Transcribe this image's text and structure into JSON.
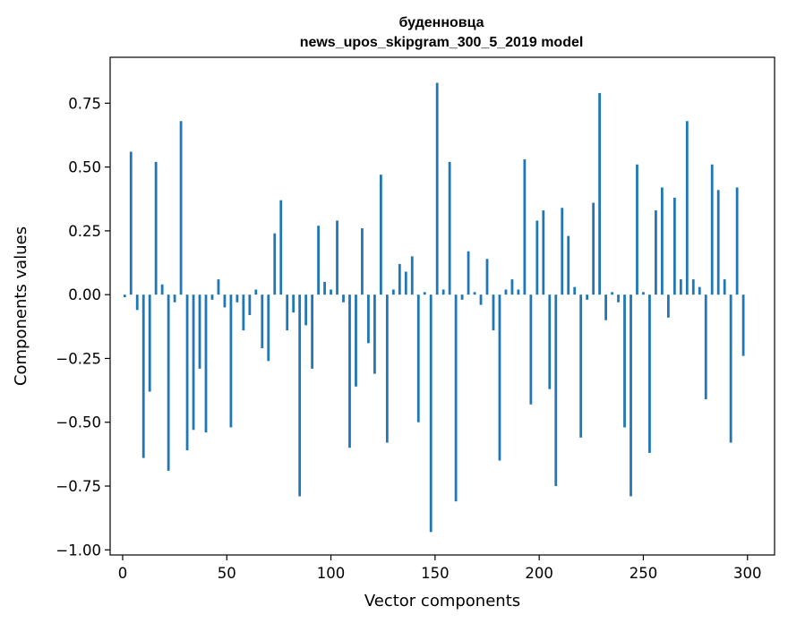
{
  "chart_data": {
    "type": "bar",
    "title": "буденновца",
    "subtitle": "news_upos_skipgram_300_5_2019 model",
    "xlabel": "Vector components",
    "ylabel": "Components values",
    "xlim": [
      -6,
      313
    ],
    "ylim": [
      -1.02,
      0.93
    ],
    "xticks": [
      0,
      50,
      100,
      150,
      200,
      250,
      300
    ],
    "xtick_labels": [
      "0",
      "50",
      "100",
      "150",
      "200",
      "250",
      "300"
    ],
    "yticks": [
      -1.0,
      -0.75,
      -0.5,
      -0.25,
      0.0,
      0.25,
      0.5,
      0.75
    ],
    "ytick_labels": [
      "−1.00",
      "−0.75",
      "−0.50",
      "−0.25",
      "0.00",
      "0.25",
      "0.50",
      "0.75"
    ],
    "grid": false,
    "bar_color": "#1f77b4",
    "values": [
      -0.01,
      0.56,
      -0.06,
      -0.64,
      -0.38,
      0.52,
      0.04,
      -0.69,
      -0.03,
      0.68,
      -0.61,
      -0.53,
      -0.29,
      -0.54,
      -0.02,
      0.06,
      -0.05,
      -0.52,
      -0.03,
      -0.14,
      -0.08,
      0.02,
      -0.21,
      -0.26,
      0.24,
      0.37,
      -0.14,
      -0.07,
      -0.79,
      -0.12,
      -0.29,
      0.27,
      0.05,
      0.02,
      0.29,
      -0.03,
      -0.6,
      -0.36,
      0.26,
      -0.19,
      -0.31,
      0.47,
      -0.58,
      0.02,
      0.12,
      0.09,
      0.15,
      -0.5,
      0.01,
      -0.93,
      0.83,
      0.02,
      0.52,
      -0.81,
      -0.02,
      0.17,
      0.01,
      -0.04,
      0.14,
      -0.14,
      -0.65,
      0.02,
      0.06,
      0.02,
      0.53,
      -0.43,
      0.29,
      0.33,
      -0.37,
      -0.75,
      0.34,
      0.23,
      0.03,
      -0.56,
      -0.02,
      0.36,
      0.79,
      -0.1,
      0.01,
      -0.03,
      -0.52,
      -0.79,
      0.51,
      0.01,
      -0.62,
      0.33,
      0.42,
      -0.09,
      0.38,
      0.06,
      0.68,
      0.06,
      0.03,
      -0.41,
      0.51,
      0.41,
      0.06,
      -0.58,
      0.42,
      -0.24
    ]
  }
}
